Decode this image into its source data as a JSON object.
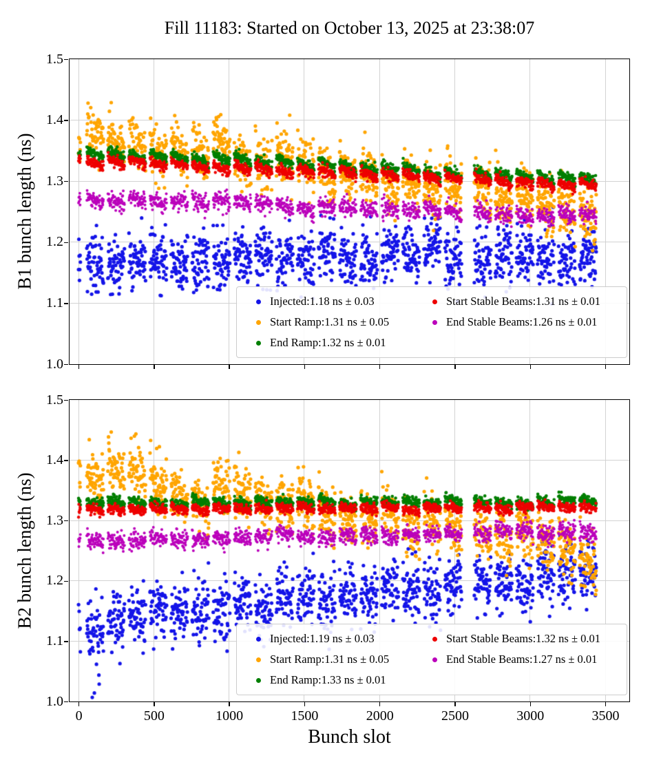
{
  "title": "Fill 11183: Started on October 13, 2025 at 23:38:07",
  "xlabel": "Bunch slot",
  "grid_color": "#d2d2d2",
  "chart_data": [
    {
      "type": "scatter",
      "ylabel": "B1 bunch length (ns)",
      "xlabel": "",
      "xlim": [
        -60,
        3660
      ],
      "ylim": [
        1.0,
        1.5
      ],
      "xtick_values": [
        0,
        500,
        1000,
        1500,
        2000,
        2500,
        3000,
        3500
      ],
      "xticks": [],
      "ytick_values": [
        1.0,
        1.1,
        1.2,
        1.3,
        1.4,
        1.5
      ],
      "yticks": [
        "1.0",
        "1.1",
        "1.2",
        "1.3",
        "1.4",
        "1.5"
      ],
      "grid": true,
      "legend_position": "lower right",
      "series": [
        {
          "name": "Injected",
          "legend_label": "Injected:1.18 ns ± 0.03",
          "mean": 1.18,
          "std": 0.03,
          "color": "#1414e8",
          "marker_radius": 2.6,
          "trend_start": 1.165,
          "trend_end": 1.186,
          "noise": 0.024,
          "sawtooth": 0,
          "train_jitter": 0.009,
          "outlier_p": 0.03,
          "outlier_max_slot": 280,
          "outlier_drop": [
            0.04,
            0.1
          ]
        },
        {
          "name": "Start Ramp",
          "legend_label": "Start Ramp:1.31 ns ± 0.05",
          "mean": 1.31,
          "std": 0.05,
          "color": "#FFA500",
          "marker_radius": 2.6,
          "trend_start": 1.376,
          "trend_end": 1.246,
          "noise": 0.021,
          "sawtooth": 0.024,
          "train_jitter": 0.01
        },
        {
          "name": "End Ramp",
          "legend_label": "End Ramp:1.32 ns ± 0.01",
          "mean": 1.32,
          "std": 0.01,
          "color": "#007F00",
          "marker_radius": 2.3,
          "trend_start": 1.346,
          "trend_end": 1.303,
          "noise": 0.0042,
          "sawtooth": 0.012,
          "train_jitter": 0.0022
        },
        {
          "name": "Start Stable Beams",
          "legend_label": "Start Stable Beams:1.31 ns ± 0.01",
          "mean": 1.31,
          "std": 0.01,
          "color": "#EE0000",
          "marker_radius": 2.2,
          "trend_start": 1.334,
          "trend_end": 1.292,
          "noise": 0.0042,
          "sawtooth": 0.01,
          "train_jitter": 0.0022
        },
        {
          "name": "End Stable Beams",
          "legend_label": "End Stable Beams:1.26 ns ± 0.01",
          "mean": 1.26,
          "std": 0.01,
          "color": "#BB00BB",
          "marker_radius": 2.0,
          "trend_start": 1.269,
          "trend_end": 1.246,
          "noise": 0.007,
          "sawtooth": 0.008,
          "train_jitter": 0.003
        }
      ]
    },
    {
      "type": "scatter",
      "ylabel": "B2 bunch length (ns)",
      "xlabel": "Bunch slot",
      "xlim": [
        -60,
        3660
      ],
      "ylim": [
        1.0,
        1.5
      ],
      "xtick_values": [
        0,
        500,
        1000,
        1500,
        2000,
        2500,
        3000,
        3500
      ],
      "xticks": [
        "0",
        "500",
        "1000",
        "1500",
        "2000",
        "2500",
        "3000",
        "3500"
      ],
      "ytick_values": [
        1.0,
        1.1,
        1.2,
        1.3,
        1.4,
        1.5
      ],
      "yticks": [
        "1.0",
        "1.1",
        "1.2",
        "1.3",
        "1.4",
        "1.5"
      ],
      "grid": true,
      "legend_position": "lower right",
      "series": [
        {
          "name": "Injected",
          "legend_label": "Injected:1.19 ns ± 0.03",
          "mean": 1.19,
          "std": 0.03,
          "color": "#1414e8",
          "marker_radius": 2.6,
          "trend_start": 1.128,
          "trend_end": 1.214,
          "noise": 0.025,
          "sawtooth": 0,
          "train_jitter": 0.011,
          "outlier_p": 0.08,
          "outlier_max_slot": 320,
          "outlier_drop": [
            0.04,
            0.12
          ]
        },
        {
          "name": "Start Ramp",
          "legend_label": "Start Ramp:1.31 ns ± 0.05",
          "mean": 1.31,
          "std": 0.05,
          "color": "#FFA500",
          "marker_radius": 2.6,
          "trend_start": 1.372,
          "trend_end": 1.258,
          "noise": 0.021,
          "sawtooth": 0.022,
          "train_jitter": 0.01
        },
        {
          "name": "End Ramp",
          "legend_label": "End Ramp:1.33 ns ± 0.01",
          "mean": 1.33,
          "std": 0.01,
          "color": "#007F00",
          "marker_radius": 2.3,
          "trend_start": 1.329,
          "trend_end": 1.332,
          "noise": 0.0042,
          "sawtooth": 0.008,
          "train_jitter": 0.0018
        },
        {
          "name": "Start Stable Beams",
          "legend_label": "Start Stable Beams:1.32 ns ± 0.01",
          "mean": 1.32,
          "std": 0.01,
          "color": "#EE0000",
          "marker_radius": 2.2,
          "trend_start": 1.318,
          "trend_end": 1.322,
          "noise": 0.004,
          "sawtooth": 0.006,
          "train_jitter": 0.0015
        },
        {
          "name": "End Stable Beams",
          "legend_label": "End Stable Beams:1.27 ns ± 0.01",
          "mean": 1.27,
          "std": 0.01,
          "color": "#BB00BB",
          "marker_radius": 2.0,
          "trend_start": 1.266,
          "trend_end": 1.284,
          "noise": 0.007,
          "sawtooth": 0.006,
          "train_jitter": 0.0025,
          "outlier_p": 0.0015,
          "outlier_max_slot": 3500,
          "outlier_drop": [
            0.1,
            0.18
          ]
        }
      ]
    }
  ],
  "generation": {
    "pilot_start": 0,
    "pilot_end": 12,
    "first_train_start": 55,
    "train_length": 112,
    "gap": 28,
    "last_slot": 3500,
    "step": 2,
    "extra_gap_at": 2560,
    "extra_gap_size": 55,
    "slot_span_for_trend": 3450,
    "seeds": [
      1013904223,
      69069
    ]
  }
}
